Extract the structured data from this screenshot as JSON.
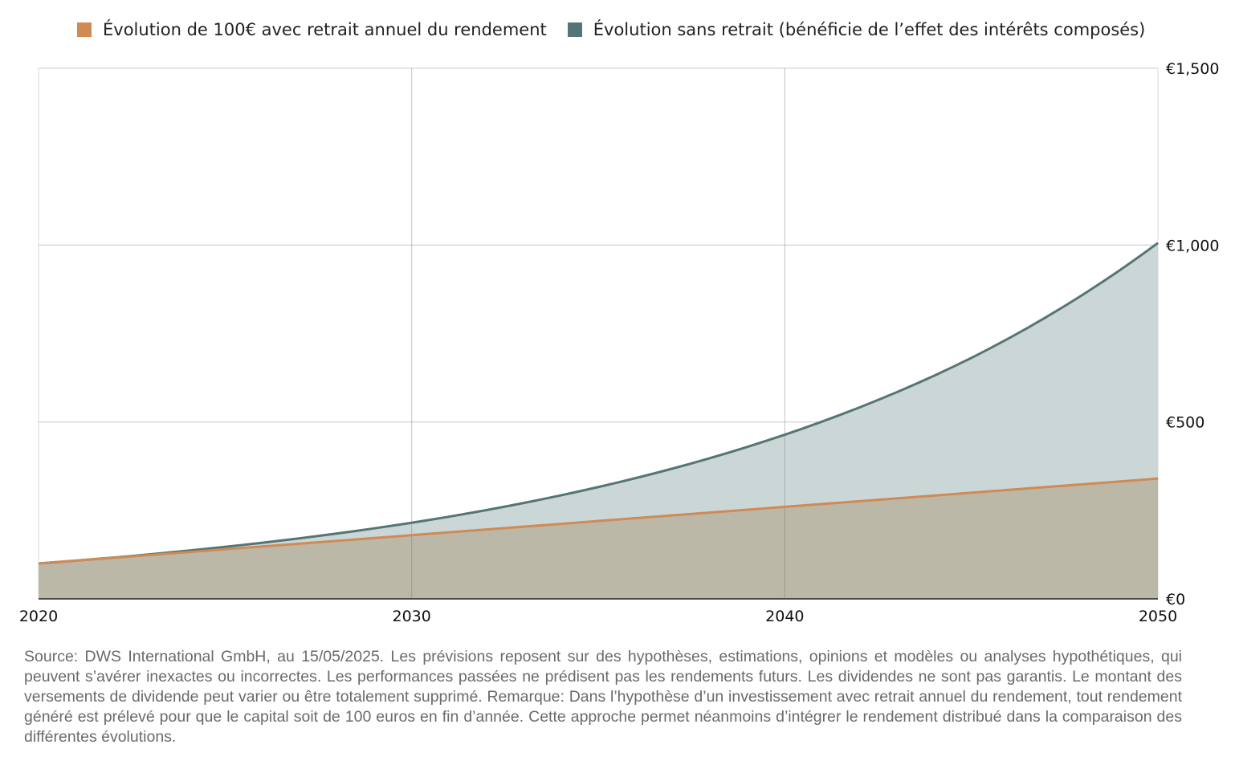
{
  "chart_data": {
    "type": "area",
    "legend_position": "top",
    "grid": true,
    "x": [
      2020,
      2025,
      2030,
      2035,
      2040,
      2045,
      2050
    ],
    "xticks": [
      "2020",
      "2030",
      "2040",
      "2050"
    ],
    "yticks": [
      "€0",
      "€500",
      "€1,000",
      "€1,500"
    ],
    "ylim": [
      0,
      1500
    ],
    "xlim": [
      2020,
      2050
    ],
    "series": [
      {
        "name": "Évolution sans retrait (bénéficie de l’effet des intérêts composés)",
        "color": "#557574",
        "fill": "#cbd7d6",
        "values": [
          100,
          147,
          215,
          316,
          464,
          681,
          1006
        ]
      },
      {
        "name": "Évolution de 100€ avec retrait annuel du rendement",
        "color": "#cf8a55",
        "fill": "#bcb8a7",
        "values": [
          100,
          140,
          180,
          220,
          260,
          300,
          340
        ]
      }
    ]
  },
  "footnote": "Source: DWS International GmbH, au 15/05/2025. Les prévisions reposent sur des hypothèses, estimations, opinions et modèles ou analyses hypothétiques, qui peuvent s’avérer inexactes ou incorrectes. Les performances passées ne prédisent pas les rendements futurs. Les dividendes ne sont pas garantis. Le montant des versements de dividende peut varier ou être totalement supprimé. Remarque: Dans l’hypothèse d’un investissement avec retrait annuel du rendement, tout rendement généré est prélevé pour que le capital soit de 100 euros en fin d’année. Cette approche permet néanmoins d’intégrer le rendement distribué dans la comparaison des différentes évolutions."
}
